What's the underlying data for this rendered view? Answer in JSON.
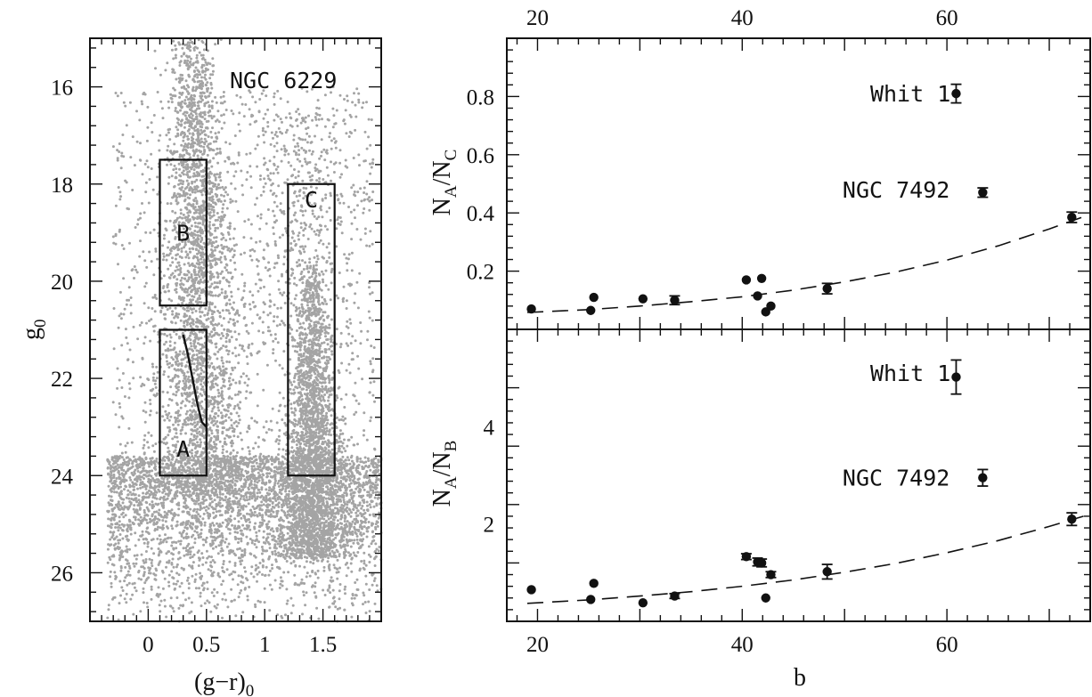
{
  "chart_data": [
    {
      "type": "scatter",
      "panel": "color-magnitude diagram",
      "xlabel": "(g−r)",
      "xlabel_sub": "0",
      "ylabel": "g",
      "ylabel_sub": "0",
      "xlim": [
        -0.5,
        2.0
      ],
      "ylim": [
        27.0,
        15.0
      ],
      "y_inverted": true,
      "x_ticks": [
        "0",
        "0.5",
        "1",
        "1.5"
      ],
      "x_tick_values": [
        0,
        0.5,
        1.0,
        1.5
      ],
      "y_ticks": [
        "16",
        "18",
        "20",
        "22",
        "24",
        "26"
      ],
      "y_tick_values": [
        16,
        18,
        20,
        22,
        24,
        26
      ],
      "annotation": "NGC 6229",
      "star_color": "#a4a4a4",
      "boxes": [
        {
          "label": "B",
          "x": [
            0.1,
            0.5
          ],
          "y": [
            17.5,
            20.5
          ]
        },
        {
          "label": "A",
          "x": [
            0.1,
            0.5
          ],
          "y": [
            21.0,
            24.0
          ]
        },
        {
          "label": "C",
          "x": [
            1.2,
            1.6
          ],
          "y": [
            18.0,
            24.0
          ]
        }
      ],
      "box_a_edge": {
        "x": [
          0.3,
          0.34,
          0.38,
          0.42,
          0.46,
          0.5
        ],
        "y": [
          21.1,
          21.5,
          22.0,
          22.5,
          22.9,
          23.0
        ]
      }
    },
    {
      "type": "scatter",
      "panel": "top-right",
      "ylabel": "N",
      "ylabel_parts": [
        "N",
        "A",
        "/N",
        "C"
      ],
      "xlim": [
        17,
        74
      ],
      "ylim": [
        0,
        1.0
      ],
      "top_x_ticks": [
        "20",
        "40",
        "60"
      ],
      "top_x_tick_values": [
        20,
        40,
        60
      ],
      "y_ticks": [
        "0.2",
        "0.4",
        "0.6",
        "0.8"
      ],
      "y_tick_values": [
        0.2,
        0.4,
        0.6,
        0.8
      ],
      "points": [
        {
          "b": 19.4,
          "v": 0.07,
          "err": 0.0
        },
        {
          "b": 25.2,
          "v": 0.065,
          "err": 0.0
        },
        {
          "b": 25.5,
          "v": 0.11,
          "err": 0.0
        },
        {
          "b": 30.3,
          "v": 0.105,
          "err": 0.0
        },
        {
          "b": 33.4,
          "v": 0.1,
          "err": 0.015
        },
        {
          "b": 40.4,
          "v": 0.17,
          "err": 0.0
        },
        {
          "b": 41.5,
          "v": 0.115,
          "err": 0.0
        },
        {
          "b": 41.9,
          "v": 0.175,
          "err": 0.0
        },
        {
          "b": 42.3,
          "v": 0.06,
          "err": 0.0
        },
        {
          "b": 42.8,
          "v": 0.08,
          "err": 0.0
        },
        {
          "b": 48.3,
          "v": 0.14,
          "err": 0.018
        },
        {
          "b": 60.9,
          "v": 0.81,
          "err": 0.032
        },
        {
          "b": 63.5,
          "v": 0.47,
          "err": 0.016
        },
        {
          "b": 72.2,
          "v": 0.385,
          "err": 0.018
        }
      ],
      "fit": {
        "b": [
          19,
          25,
          30,
          35,
          40,
          45,
          50,
          55,
          60,
          65,
          70,
          74
        ],
        "v": [
          0.058,
          0.068,
          0.08,
          0.095,
          0.112,
          0.135,
          0.163,
          0.197,
          0.238,
          0.287,
          0.345,
          0.395
        ]
      },
      "labels": [
        {
          "text": "Whit 1",
          "b": 52.5,
          "v": 0.81
        },
        {
          "text": "NGC 7492",
          "b": 49.8,
          "v": 0.48
        }
      ]
    },
    {
      "type": "scatter",
      "panel": "bottom-right",
      "xlabel": "b",
      "ylabel": "N",
      "ylabel_parts": [
        "N",
        "A",
        "/N",
        "B"
      ],
      "xlim": [
        17,
        74
      ],
      "ylim": [
        0,
        6.0
      ],
      "x_ticks": [
        "20",
        "40",
        "60"
      ],
      "x_tick_values": [
        20,
        40,
        60
      ],
      "y_ticks": [
        "2",
        "4"
      ],
      "y_tick_values": [
        2,
        4
      ],
      "points": [
        {
          "b": 19.4,
          "v": 0.65,
          "err": 0.0
        },
        {
          "b": 25.2,
          "v": 0.45,
          "err": 0.0
        },
        {
          "b": 25.5,
          "v": 0.78,
          "err": 0.0
        },
        {
          "b": 30.3,
          "v": 0.38,
          "err": 0.0
        },
        {
          "b": 33.4,
          "v": 0.52,
          "err": 0.05
        },
        {
          "b": 40.4,
          "v": 1.33,
          "err": 0.06
        },
        {
          "b": 41.5,
          "v": 1.22,
          "err": 0.08
        },
        {
          "b": 41.9,
          "v": 1.2,
          "err": 0.08
        },
        {
          "b": 42.3,
          "v": 0.48,
          "err": 0.0
        },
        {
          "b": 42.8,
          "v": 0.96,
          "err": 0.06
        },
        {
          "b": 48.3,
          "v": 1.02,
          "err": 0.15
        },
        {
          "b": 60.9,
          "v": 5.02,
          "err": 0.35
        },
        {
          "b": 63.5,
          "v": 2.95,
          "err": 0.17
        },
        {
          "b": 72.2,
          "v": 2.1,
          "err": 0.13
        }
      ],
      "fit": {
        "b": [
          19,
          25,
          30,
          35,
          40,
          45,
          50,
          55,
          60,
          65,
          70,
          74
        ],
        "v": [
          0.37,
          0.44,
          0.52,
          0.61,
          0.72,
          0.85,
          1.01,
          1.19,
          1.41,
          1.66,
          1.95,
          2.2
        ]
      },
      "labels": [
        {
          "text": "Whit 1",
          "b": 52.5,
          "v": 5.1
        },
        {
          "text": "NGC 7492",
          "b": 49.8,
          "v": 2.95
        }
      ]
    }
  ]
}
